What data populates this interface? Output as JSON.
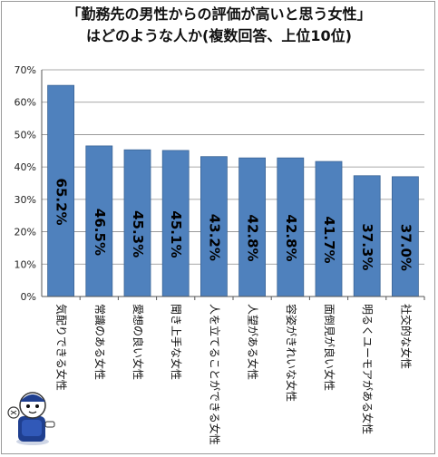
{
  "header": {
    "title_line1": "「勤務先の男性からの評価が高いと思う女性」",
    "title_line2": "はどのような人か(複数回答、上位10位)"
  },
  "chart_data": {
    "type": "bar",
    "categories": [
      "気配りできる女性",
      "常識のある女性",
      "愛想の良い女性",
      "聞き上手な女性",
      "人を立てることができる女性",
      "人望がある女性",
      "容姿がきれいな女性",
      "面倒見が良い女性",
      "明るくユーモアがある女性",
      "社交的な女性"
    ],
    "values": [
      65.2,
      46.5,
      45.3,
      45.1,
      43.2,
      42.8,
      42.8,
      41.7,
      37.3,
      37.0
    ],
    "data_labels": [
      "65.2%",
      "46.5%",
      "45.3%",
      "45.1%",
      "43.2%",
      "42.8%",
      "42.8%",
      "41.7%",
      "37.3%",
      "37.0%"
    ],
    "y_ticks": [
      "0%",
      "10%",
      "20%",
      "30%",
      "40%",
      "50%",
      "60%",
      "70%"
    ],
    "ylim": [
      0,
      70
    ],
    "grid": true,
    "title": "「勤務先の男性からの評価が高いと思う女性」はどのような人か(複数回答、上位10位)",
    "bar_color": "#4f81bd",
    "bar_edge_color": "#3a6496"
  },
  "mascot": {
    "icon": "mascot-character-icon"
  }
}
